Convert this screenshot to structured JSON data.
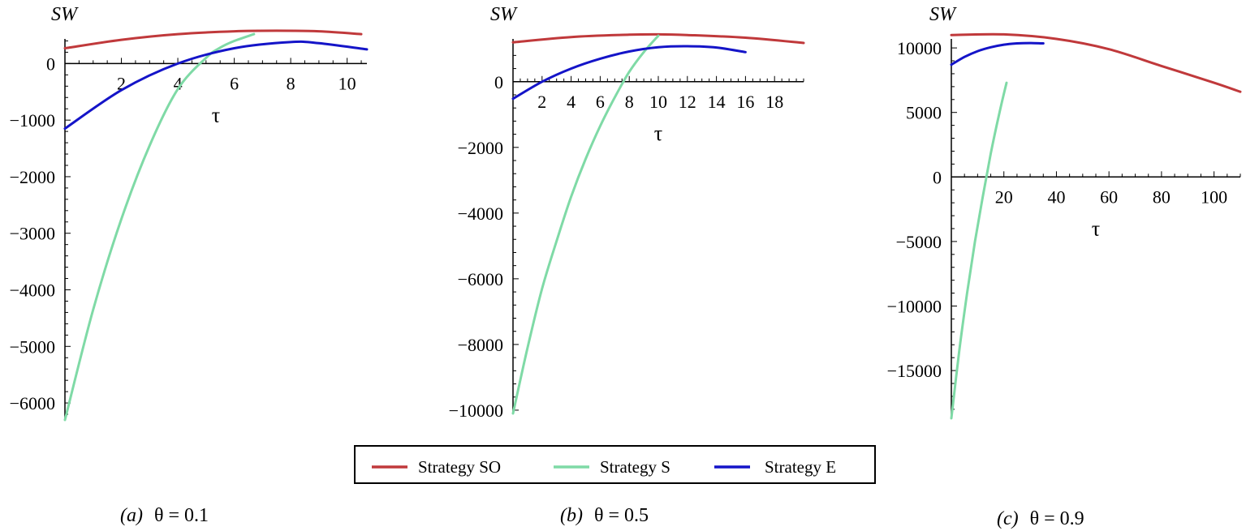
{
  "colors": {
    "SO": "#c0393b",
    "S": "#7fdaa6",
    "E": "#1414c8"
  },
  "legend": {
    "position": "bottom-center",
    "entries": [
      {
        "key": "SO",
        "label": "Strategy SO"
      },
      {
        "key": "S",
        "label": "Strategy S"
      },
      {
        "key": "E",
        "label": "Strategy E"
      }
    ]
  },
  "chart_data": [
    {
      "type": "line",
      "ylabel": "SW",
      "xlabel": "τ",
      "caption_tag": "(a)",
      "caption_eq": "θ = 0.1",
      "xlim": [
        0,
        10.7
      ],
      "ylim": [
        -6300,
        550
      ],
      "xticks": [
        2,
        4,
        6,
        8,
        10
      ],
      "xtick_labels": [
        "2",
        "4",
        "6",
        "8",
        "10"
      ],
      "yticks": [
        0,
        -1000,
        -2000,
        -3000,
        -4000,
        -5000,
        -6000
      ],
      "ytick_labels": [
        "0",
        "−1000",
        "−2000",
        "−3000",
        "−4000",
        "−5000",
        "−6000"
      ],
      "grid": false,
      "series": [
        {
          "key": "SO",
          "name": "Strategy SO",
          "x": [
            0,
            2,
            4,
            6,
            7.5,
            9,
            10.5
          ],
          "y": [
            270,
            420,
            520,
            570,
            580,
            570,
            520
          ]
        },
        {
          "key": "S",
          "name": "Strategy S",
          "x": [
            0,
            1,
            2,
            3,
            4,
            5,
            5.5,
            6,
            6.7
          ],
          "y": [
            -6300,
            -4350,
            -2750,
            -1450,
            -450,
            100,
            280,
            400,
            520
          ]
        },
        {
          "key": "E",
          "name": "Strategy E",
          "x": [
            0,
            2,
            4,
            6,
            8,
            9,
            10.7
          ],
          "y": [
            -1150,
            -470,
            0,
            270,
            380,
            360,
            250
          ]
        }
      ]
    },
    {
      "type": "line",
      "ylabel": "SW",
      "xlabel": "τ",
      "caption_tag": "(b)",
      "caption_eq": "θ = 0.5",
      "xlim": [
        0,
        20
      ],
      "ylim": [
        -10100,
        1500
      ],
      "xticks": [
        2,
        4,
        6,
        8,
        10,
        12,
        14,
        16,
        18
      ],
      "xtick_labels": [
        "2",
        "4",
        "6",
        "8",
        "10",
        "12",
        "14",
        "16",
        "18"
      ],
      "yticks": [
        0,
        -2000,
        -4000,
        -6000,
        -8000,
        -10000
      ],
      "ytick_labels": [
        "0",
        "−2000",
        "−4000",
        "−6000",
        "−8000",
        "−10000"
      ],
      "grid": false,
      "series": [
        {
          "key": "SO",
          "name": "Strategy SO",
          "x": [
            0,
            4,
            8,
            10,
            12,
            16,
            20
          ],
          "y": [
            1200,
            1360,
            1430,
            1440,
            1420,
            1340,
            1180
          ]
        },
        {
          "key": "S",
          "name": "Strategy S",
          "x": [
            0,
            1,
            2,
            3,
            4,
            5,
            6,
            7,
            8,
            9,
            10
          ],
          "y": [
            -10100,
            -8100,
            -6300,
            -4850,
            -3500,
            -2350,
            -1350,
            -480,
            300,
            900,
            1400
          ]
        },
        {
          "key": "E",
          "name": "Strategy E",
          "x": [
            0,
            2,
            4,
            6,
            8,
            10,
            12,
            14,
            16
          ],
          "y": [
            -520,
            0,
            400,
            700,
            920,
            1050,
            1080,
            1040,
            900
          ]
        }
      ]
    },
    {
      "type": "line",
      "ylabel": "SW",
      "xlabel": "τ",
      "caption_tag": "(c)",
      "caption_eq": "θ = 0.9",
      "xlim": [
        0,
        110
      ],
      "ylim": [
        -18700,
        11200
      ],
      "xticks": [
        20,
        40,
        60,
        80,
        100
      ],
      "xtick_labels": [
        "20",
        "40",
        "60",
        "80",
        "100"
      ],
      "yticks": [
        10000,
        5000,
        0,
        -5000,
        -10000,
        -15000
      ],
      "ytick_labels": [
        "10000",
        "5000",
        "0",
        "−5000",
        "−10000",
        "−15000"
      ],
      "grid": false,
      "series": [
        {
          "key": "SO",
          "name": "Strategy SO",
          "x": [
            0,
            20,
            40,
            60,
            80,
            100,
            110
          ],
          "y": [
            11000,
            11050,
            10700,
            9900,
            8600,
            7300,
            6600
          ]
        },
        {
          "key": "S",
          "name": "Strategy S",
          "x": [
            0,
            3,
            6,
            9,
            12,
            15,
            18,
            21
          ],
          "y": [
            -18700,
            -13500,
            -9000,
            -5000,
            -1500,
            1800,
            4700,
            7300
          ]
        },
        {
          "key": "E",
          "name": "Strategy E",
          "x": [
            0,
            5,
            10,
            15,
            20,
            25,
            30,
            35
          ],
          "y": [
            8700,
            9300,
            9750,
            10050,
            10250,
            10350,
            10380,
            10350
          ]
        }
      ]
    }
  ]
}
